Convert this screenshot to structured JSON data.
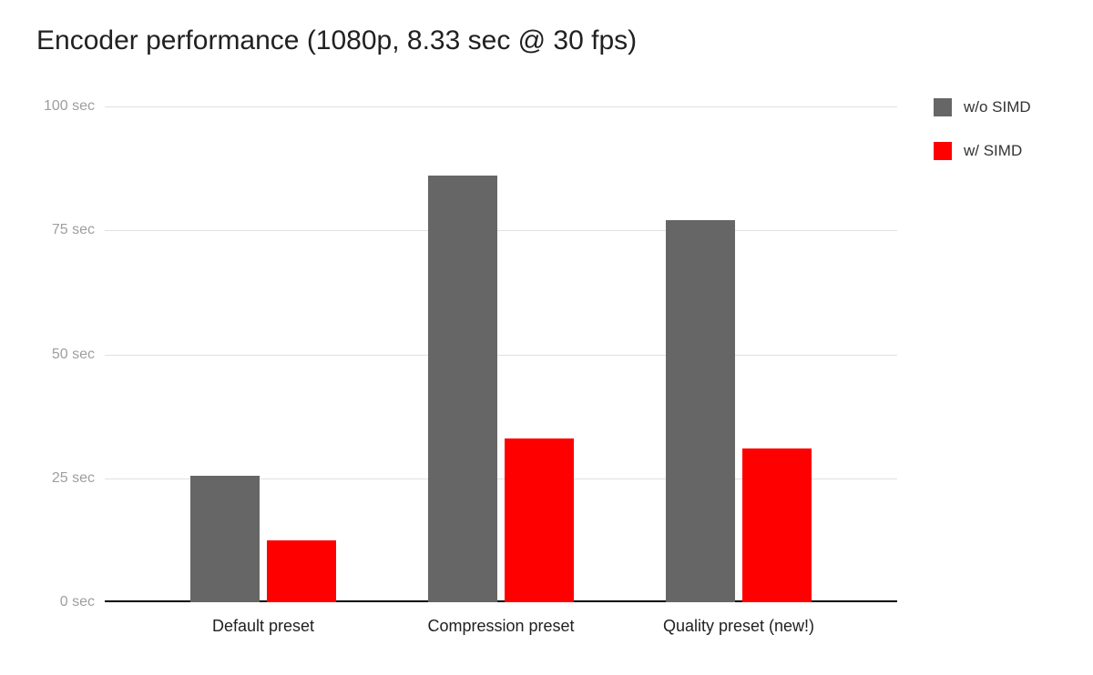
{
  "chart_data": {
    "type": "bar",
    "title": "Encoder performance (1080p, 8.33 sec @ 30 fps)",
    "categories": [
      "Default preset",
      "Compression preset",
      "Quality preset (new!)"
    ],
    "series": [
      {
        "name": "w/o SIMD",
        "color": "#666666",
        "values": [
          25.5,
          86,
          77
        ]
      },
      {
        "name": "w/ SIMD",
        "color": "#ff0000",
        "values": [
          12.5,
          33,
          31
        ]
      }
    ],
    "unit": "sec",
    "y_ticks": [
      {
        "value": 0,
        "label": "0 sec"
      },
      {
        "value": 25,
        "label": "25 sec"
      },
      {
        "value": 50,
        "label": "50 sec"
      },
      {
        "value": 75,
        "label": "75 sec"
      },
      {
        "value": 100,
        "label": "100 sec"
      }
    ],
    "ylim": [
      0,
      100
    ],
    "xlabel": "",
    "ylabel": "",
    "grid": true,
    "legend_position": "top-right",
    "background": "#ffffff",
    "colors": {
      "title_text": "#212121",
      "y_tick_text": "#9e9e9e",
      "x_tick_text": "#212121",
      "gridline": "#e0e0e0",
      "axis_line": "#000000"
    }
  }
}
